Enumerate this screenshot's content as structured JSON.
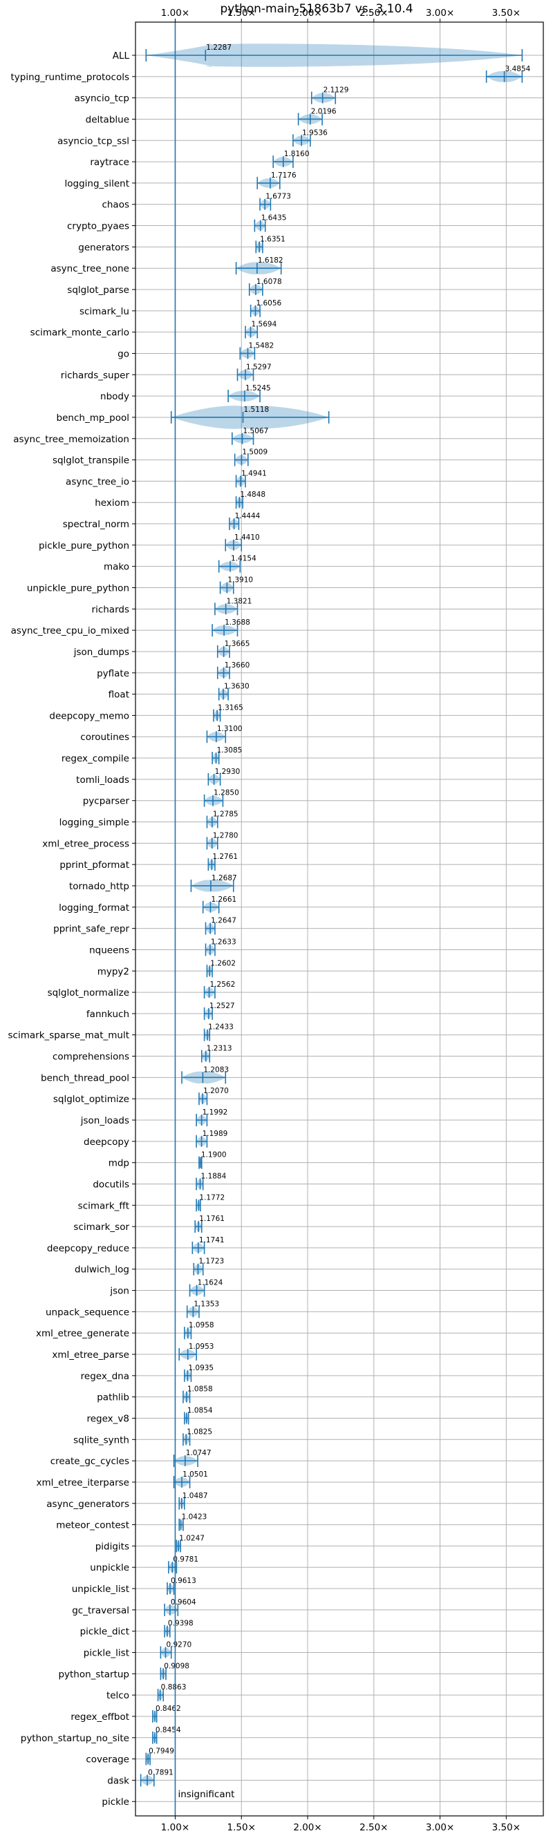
{
  "chart_data": {
    "type": "violin",
    "title": "python-main-51863b7 vs. 3.10.4",
    "x_ticks": [
      "1.00×",
      "1.50×",
      "2.00×",
      "2.50×",
      "3.00×",
      "3.50×"
    ],
    "x_tick_values": [
      1.0,
      1.5,
      2.0,
      2.5,
      3.0,
      3.5
    ],
    "xlim": [
      0.7,
      3.78
    ],
    "grid": true,
    "reference_line": 1.0,
    "annotation": "insignificant",
    "benchmarks": [
      {
        "name": "ALL",
        "label": "1.2287",
        "value": 1.2287,
        "lo": 0.78,
        "hi": 3.62
      },
      {
        "name": "typing_runtime_protocols",
        "label": "3.4854",
        "value": 3.4854,
        "lo": 3.35,
        "hi": 3.62
      },
      {
        "name": "asyncio_tcp",
        "label": "2.1129",
        "value": 2.1129,
        "lo": 2.03,
        "hi": 2.21
      },
      {
        "name": "deltablue",
        "label": "2.0196",
        "value": 2.0196,
        "lo": 1.93,
        "hi": 2.11
      },
      {
        "name": "asyncio_tcp_ssl",
        "label": "1.9536",
        "value": 1.9536,
        "lo": 1.89,
        "hi": 2.02
      },
      {
        "name": "raytrace",
        "label": "1.8160",
        "value": 1.816,
        "lo": 1.74,
        "hi": 1.89
      },
      {
        "name": "logging_silent",
        "label": "1.7176",
        "value": 1.7176,
        "lo": 1.62,
        "hi": 1.79
      },
      {
        "name": "chaos",
        "label": "1.6773",
        "value": 1.6773,
        "lo": 1.64,
        "hi": 1.72
      },
      {
        "name": "crypto_pyaes",
        "label": "1.6435",
        "value": 1.6435,
        "lo": 1.6,
        "hi": 1.68
      },
      {
        "name": "generators",
        "label": "1.6351",
        "value": 1.6351,
        "lo": 1.61,
        "hi": 1.66
      },
      {
        "name": "async_tree_none",
        "label": "1.6182",
        "value": 1.6182,
        "lo": 1.46,
        "hi": 1.8
      },
      {
        "name": "sqlglot_parse",
        "label": "1.6078",
        "value": 1.6078,
        "lo": 1.56,
        "hi": 1.66
      },
      {
        "name": "scimark_lu",
        "label": "1.6056",
        "value": 1.6056,
        "lo": 1.57,
        "hi": 1.64
      },
      {
        "name": "scimark_monte_carlo",
        "label": "1.5694",
        "value": 1.5694,
        "lo": 1.53,
        "hi": 1.62
      },
      {
        "name": "go",
        "label": "1.5482",
        "value": 1.5482,
        "lo": 1.49,
        "hi": 1.6
      },
      {
        "name": "richards_super",
        "label": "1.5297",
        "value": 1.5297,
        "lo": 1.47,
        "hi": 1.59
      },
      {
        "name": "nbody",
        "label": "1.5245",
        "value": 1.5245,
        "lo": 1.4,
        "hi": 1.64
      },
      {
        "name": "bench_mp_pool",
        "label": "1.5118",
        "value": 1.5118,
        "lo": 0.97,
        "hi": 2.16
      },
      {
        "name": "async_tree_memoization",
        "label": "1.5067",
        "value": 1.5067,
        "lo": 1.43,
        "hi": 1.59
      },
      {
        "name": "sqlglot_transpile",
        "label": "1.5009",
        "value": 1.5009,
        "lo": 1.45,
        "hi": 1.55
      },
      {
        "name": "async_tree_io",
        "label": "1.4941",
        "value": 1.4941,
        "lo": 1.46,
        "hi": 1.53
      },
      {
        "name": "hexiom",
        "label": "1.4848",
        "value": 1.4848,
        "lo": 1.46,
        "hi": 1.51
      },
      {
        "name": "spectral_norm",
        "label": "1.4444",
        "value": 1.4444,
        "lo": 1.41,
        "hi": 1.48
      },
      {
        "name": "pickle_pure_python",
        "label": "1.4410",
        "value": 1.441,
        "lo": 1.38,
        "hi": 1.5
      },
      {
        "name": "mako",
        "label": "1.4154",
        "value": 1.4154,
        "lo": 1.33,
        "hi": 1.49
      },
      {
        "name": "unpickle_pure_python",
        "label": "1.3910",
        "value": 1.391,
        "lo": 1.34,
        "hi": 1.44
      },
      {
        "name": "richards",
        "label": "1.3821",
        "value": 1.3821,
        "lo": 1.3,
        "hi": 1.47
      },
      {
        "name": "async_tree_cpu_io_mixed",
        "label": "1.3688",
        "value": 1.3688,
        "lo": 1.28,
        "hi": 1.47
      },
      {
        "name": "json_dumps",
        "label": "1.3665",
        "value": 1.3665,
        "lo": 1.32,
        "hi": 1.41
      },
      {
        "name": "pyflate",
        "label": "1.3660",
        "value": 1.366,
        "lo": 1.32,
        "hi": 1.41
      },
      {
        "name": "float",
        "label": "1.3630",
        "value": 1.363,
        "lo": 1.33,
        "hi": 1.4
      },
      {
        "name": "deepcopy_memo",
        "label": "1.3165",
        "value": 1.3165,
        "lo": 1.29,
        "hi": 1.34
      },
      {
        "name": "coroutines",
        "label": "1.3100",
        "value": 1.31,
        "lo": 1.24,
        "hi": 1.38
      },
      {
        "name": "regex_compile",
        "label": "1.3085",
        "value": 1.3085,
        "lo": 1.28,
        "hi": 1.33
      },
      {
        "name": "tomli_loads",
        "label": "1.2930",
        "value": 1.293,
        "lo": 1.25,
        "hi": 1.34
      },
      {
        "name": "pycparser",
        "label": "1.2850",
        "value": 1.285,
        "lo": 1.22,
        "hi": 1.36
      },
      {
        "name": "logging_simple",
        "label": "1.2785",
        "value": 1.2785,
        "lo": 1.24,
        "hi": 1.32
      },
      {
        "name": "xml_etree_process",
        "label": "1.2780",
        "value": 1.278,
        "lo": 1.24,
        "hi": 1.32
      },
      {
        "name": "pprint_pformat",
        "label": "1.2761",
        "value": 1.2761,
        "lo": 1.25,
        "hi": 1.3
      },
      {
        "name": "tornado_http",
        "label": "1.2687",
        "value": 1.2687,
        "lo": 1.12,
        "hi": 1.44
      },
      {
        "name": "logging_format",
        "label": "1.2661",
        "value": 1.2661,
        "lo": 1.21,
        "hi": 1.33
      },
      {
        "name": "pprint_safe_repr",
        "label": "1.2647",
        "value": 1.2647,
        "lo": 1.23,
        "hi": 1.3
      },
      {
        "name": "nqueens",
        "label": "1.2633",
        "value": 1.2633,
        "lo": 1.23,
        "hi": 1.3
      },
      {
        "name": "mypy2",
        "label": "1.2602",
        "value": 1.2602,
        "lo": 1.24,
        "hi": 1.28
      },
      {
        "name": "sqlglot_normalize",
        "label": "1.2562",
        "value": 1.2562,
        "lo": 1.22,
        "hi": 1.3
      },
      {
        "name": "fannkuch",
        "label": "1.2527",
        "value": 1.2527,
        "lo": 1.22,
        "hi": 1.28
      },
      {
        "name": "scimark_sparse_mat_mult",
        "label": "1.2433",
        "value": 1.2433,
        "lo": 1.22,
        "hi": 1.26
      },
      {
        "name": "comprehensions",
        "label": "1.2313",
        "value": 1.2313,
        "lo": 1.2,
        "hi": 1.26
      },
      {
        "name": "bench_thread_pool",
        "label": "1.2083",
        "value": 1.2083,
        "lo": 1.05,
        "hi": 1.38
      },
      {
        "name": "sqlglot_optimize",
        "label": "1.2070",
        "value": 1.207,
        "lo": 1.18,
        "hi": 1.24
      },
      {
        "name": "json_loads",
        "label": "1.1992",
        "value": 1.1992,
        "lo": 1.16,
        "hi": 1.24
      },
      {
        "name": "deepcopy",
        "label": "1.1989",
        "value": 1.1989,
        "lo": 1.16,
        "hi": 1.24
      },
      {
        "name": "mdp",
        "label": "1.1900",
        "value": 1.19,
        "lo": 1.18,
        "hi": 1.2
      },
      {
        "name": "docutils",
        "label": "1.1884",
        "value": 1.1884,
        "lo": 1.16,
        "hi": 1.21
      },
      {
        "name": "scimark_fft",
        "label": "1.1772",
        "value": 1.1772,
        "lo": 1.16,
        "hi": 1.19
      },
      {
        "name": "scimark_sor",
        "label": "1.1761",
        "value": 1.1761,
        "lo": 1.15,
        "hi": 1.2
      },
      {
        "name": "deepcopy_reduce",
        "label": "1.1741",
        "value": 1.1741,
        "lo": 1.13,
        "hi": 1.22
      },
      {
        "name": "dulwich_log",
        "label": "1.1723",
        "value": 1.1723,
        "lo": 1.14,
        "hi": 1.21
      },
      {
        "name": "json",
        "label": "1.1624",
        "value": 1.1624,
        "lo": 1.11,
        "hi": 1.22
      },
      {
        "name": "unpack_sequence",
        "label": "1.1353",
        "value": 1.1353,
        "lo": 1.09,
        "hi": 1.18
      },
      {
        "name": "xml_etree_generate",
        "label": "1.0958",
        "value": 1.0958,
        "lo": 1.07,
        "hi": 1.12
      },
      {
        "name": "xml_etree_parse",
        "label": "1.0953",
        "value": 1.0953,
        "lo": 1.03,
        "hi": 1.16
      },
      {
        "name": "regex_dna",
        "label": "1.0935",
        "value": 1.0935,
        "lo": 1.07,
        "hi": 1.12
      },
      {
        "name": "pathlib",
        "label": "1.0858",
        "value": 1.0858,
        "lo": 1.06,
        "hi": 1.11
      },
      {
        "name": "regex_v8",
        "label": "1.0854",
        "value": 1.0854,
        "lo": 1.07,
        "hi": 1.1
      },
      {
        "name": "sqlite_synth",
        "label": "1.0825",
        "value": 1.0825,
        "lo": 1.06,
        "hi": 1.11
      },
      {
        "name": "create_gc_cycles",
        "label": "1.0747",
        "value": 1.0747,
        "lo": 0.99,
        "hi": 1.17
      },
      {
        "name": "xml_etree_iterparse",
        "label": "1.0501",
        "value": 1.0501,
        "lo": 0.99,
        "hi": 1.11
      },
      {
        "name": "async_generators",
        "label": "1.0487",
        "value": 1.0487,
        "lo": 1.03,
        "hi": 1.07
      },
      {
        "name": "meteor_contest",
        "label": "1.0423",
        "value": 1.0423,
        "lo": 1.03,
        "hi": 1.06
      },
      {
        "name": "pidigits",
        "label": "1.0247",
        "value": 1.0247,
        "lo": 1.01,
        "hi": 1.04
      },
      {
        "name": "unpickle",
        "label": "0.9781",
        "value": 0.9781,
        "lo": 0.95,
        "hi": 1.01
      },
      {
        "name": "unpickle_list",
        "label": "0.9613",
        "value": 0.9613,
        "lo": 0.94,
        "hi": 0.99
      },
      {
        "name": "gc_traversal",
        "label": "0.9604",
        "value": 0.9604,
        "lo": 0.92,
        "hi": 1.02
      },
      {
        "name": "pickle_dict",
        "label": "0.9398",
        "value": 0.9398,
        "lo": 0.92,
        "hi": 0.96
      },
      {
        "name": "pickle_list",
        "label": "0.9270",
        "value": 0.927,
        "lo": 0.89,
        "hi": 0.97
      },
      {
        "name": "python_startup",
        "label": "0.9098",
        "value": 0.9098,
        "lo": 0.89,
        "hi": 0.93
      },
      {
        "name": "telco",
        "label": "0.8863",
        "value": 0.8863,
        "lo": 0.87,
        "hi": 0.91
      },
      {
        "name": "regex_effbot",
        "label": "0.8462",
        "value": 0.8462,
        "lo": 0.83,
        "hi": 0.86
      },
      {
        "name": "python_startup_no_site",
        "label": "0.8454",
        "value": 0.8454,
        "lo": 0.83,
        "hi": 0.86
      },
      {
        "name": "coverage",
        "label": "0.7949",
        "value": 0.7949,
        "lo": 0.78,
        "hi": 0.81
      },
      {
        "name": "dask",
        "label": "0.7891",
        "value": 0.7891,
        "lo": 0.74,
        "hi": 0.84
      },
      {
        "name": "pickle",
        "label": "",
        "value": null,
        "lo": null,
        "hi": null
      }
    ]
  }
}
